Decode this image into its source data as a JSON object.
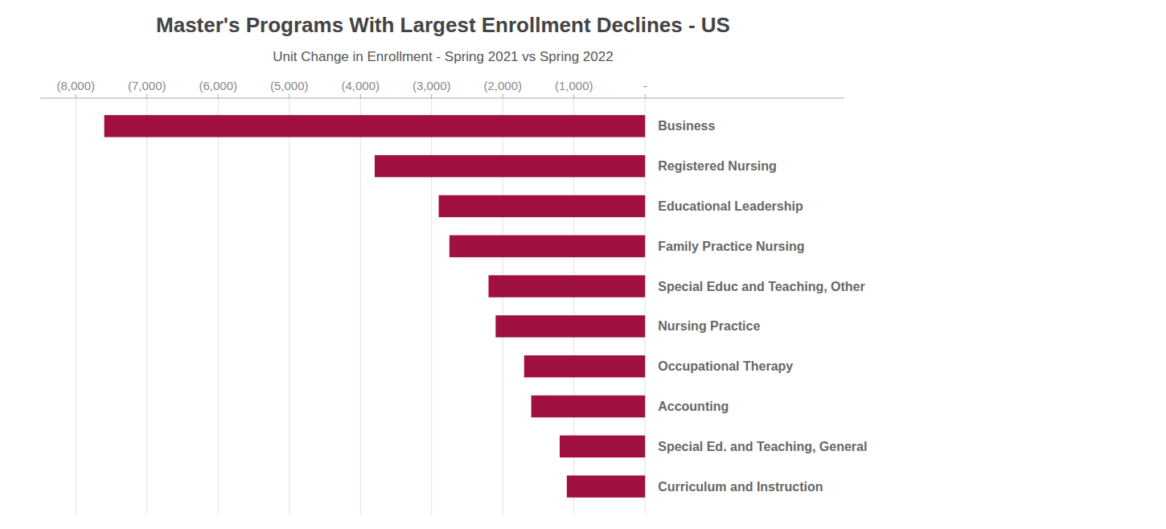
{
  "chart_data": {
    "type": "bar",
    "orientation": "horizontal",
    "title": "Master's Programs With Largest Enrollment Declines - US",
    "subtitle": "Unit Change in Enrollment - Spring 2021 vs Spring 2022",
    "categories": [
      "Business",
      "Registered Nursing",
      "Educational Leadership",
      "Family Practice Nursing",
      "Special Educ and Teaching, Other",
      "Nursing Practice",
      "Occupational Therapy",
      "Accounting",
      "Special Ed. and Teaching, General",
      "Curriculum and Instruction"
    ],
    "values": [
      -7600,
      -3800,
      -2900,
      -2750,
      -2200,
      -2100,
      -1700,
      -1600,
      -1200,
      -1100
    ],
    "color": "#A01040",
    "xlim": [
      -8500,
      2800
    ],
    "xticks": [
      {
        "value": -8000,
        "label": "(8,000)"
      },
      {
        "value": -7000,
        "label": "(7,000)"
      },
      {
        "value": -6000,
        "label": "(6,000)"
      },
      {
        "value": -5000,
        "label": "(5,000)"
      },
      {
        "value": -4000,
        "label": "(4,000)"
      },
      {
        "value": -3000,
        "label": "(3,000)"
      },
      {
        "value": -2000,
        "label": "(2,000)"
      },
      {
        "value": -1000,
        "label": "(1,000)"
      },
      {
        "value": 0,
        "label": "-"
      }
    ],
    "grid": true
  }
}
